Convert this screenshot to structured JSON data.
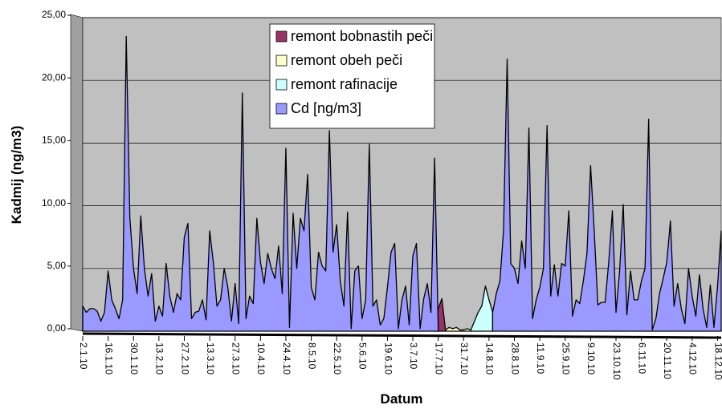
{
  "chart_data": {
    "type": "area",
    "y_label": "Kadmij (ng/m3)",
    "x_label": "Datum",
    "ylim": [
      0,
      25
    ],
    "yticks": [
      {
        "value": 0,
        "label": "0,00"
      },
      {
        "value": 5,
        "label": "5,00"
      },
      {
        "value": 10,
        "label": "10,00"
      },
      {
        "value": 15,
        "label": "15,00"
      },
      {
        "value": 20,
        "label": "20,00"
      },
      {
        "value": 25,
        "label": "25,00"
      }
    ],
    "grid": true,
    "legend": "top",
    "categories": [
      "2.1.10",
      null,
      null,
      null,
      null,
      null,
      null,
      "16.1.10",
      null,
      null,
      null,
      null,
      null,
      null,
      "30.1.10",
      null,
      null,
      null,
      null,
      null,
      null,
      "13.2.10",
      null,
      null,
      null,
      null,
      null,
      null,
      "27.2.10",
      null,
      null,
      null,
      null,
      null,
      null,
      "13.3.10",
      null,
      null,
      null,
      null,
      null,
      null,
      "27.3.10",
      null,
      null,
      null,
      null,
      null,
      null,
      "10.4.10",
      null,
      null,
      null,
      null,
      null,
      null,
      "24.4.10",
      null,
      null,
      null,
      null,
      null,
      null,
      "8.5.10",
      null,
      null,
      null,
      null,
      null,
      null,
      "22.5.10",
      null,
      null,
      null,
      null,
      null,
      null,
      "5.6.10",
      null,
      null,
      null,
      null,
      null,
      null,
      "19.6.10",
      null,
      null,
      null,
      null,
      null,
      null,
      "3.7.10",
      null,
      null,
      null,
      null,
      null,
      null,
      "17.7.10",
      null,
      null,
      null,
      null,
      null,
      null,
      "31.7.10",
      null,
      null,
      null,
      null,
      null,
      null,
      "14.8.10",
      null,
      null,
      null,
      null,
      null,
      null,
      "28.8.10",
      null,
      null,
      null,
      null,
      null,
      null,
      "11.9.10",
      null,
      null,
      null,
      null,
      null,
      null,
      "25.9.10",
      null,
      null,
      null,
      null,
      null,
      null,
      "9.10.10",
      null,
      null,
      null,
      null,
      null,
      null,
      "23.10.10",
      null,
      null,
      null,
      null,
      null,
      null,
      "6.11.10",
      null,
      null,
      null,
      null,
      null,
      null,
      "20.11.10",
      null,
      null,
      null,
      null,
      null,
      null,
      "4.12.10",
      null,
      null,
      null,
      null,
      null,
      null,
      "18.12.10",
      null
    ],
    "series": [
      {
        "name": "remont bobnastih peči",
        "color": "#993366",
        "values": [
          null,
          null,
          null,
          null,
          null,
          null,
          null,
          null,
          null,
          null,
          null,
          null,
          null,
          null,
          null,
          null,
          null,
          null,
          null,
          null,
          null,
          null,
          null,
          null,
          null,
          null,
          null,
          null,
          null,
          null,
          null,
          null,
          null,
          null,
          null,
          null,
          null,
          null,
          null,
          null,
          null,
          null,
          null,
          null,
          null,
          null,
          null,
          null,
          null,
          null,
          null,
          null,
          null,
          null,
          null,
          null,
          null,
          null,
          null,
          null,
          null,
          null,
          null,
          null,
          null,
          null,
          null,
          null,
          null,
          null,
          null,
          null,
          null,
          null,
          null,
          null,
          null,
          null,
          null,
          null,
          null,
          null,
          null,
          null,
          null,
          null,
          null,
          null,
          null,
          null,
          null,
          null,
          null,
          null,
          null,
          null,
          null,
          0,
          1.8,
          2.6,
          0.1,
          null,
          null,
          null,
          null,
          null,
          null,
          null,
          null,
          null,
          null,
          null,
          null,
          null,
          null,
          null,
          null,
          null,
          null,
          null,
          null,
          null,
          null,
          null,
          null,
          null,
          null,
          null,
          null,
          null,
          null,
          null,
          null,
          null,
          null,
          null,
          null,
          null,
          null,
          null,
          null,
          null,
          null,
          null,
          null,
          null,
          null,
          null,
          null,
          null,
          null,
          null,
          null,
          null,
          null,
          null,
          null,
          null,
          null,
          null,
          null,
          null,
          null,
          null,
          null,
          null,
          null,
          null,
          null,
          null,
          null,
          null,
          null,
          null,
          null,
          null,
          null
        ]
      },
      {
        "name": "remont obeh peči",
        "color": "#ffffcc",
        "values": [
          1.7,
          0,
          null,
          null,
          null,
          null,
          null,
          null,
          null,
          null,
          null,
          null,
          null,
          null,
          null,
          null,
          null,
          null,
          null,
          null,
          null,
          null,
          null,
          null,
          null,
          null,
          null,
          null,
          null,
          null,
          null,
          null,
          null,
          null,
          null,
          null,
          null,
          null,
          null,
          null,
          null,
          null,
          null,
          null,
          null,
          null,
          null,
          null,
          null,
          null,
          null,
          null,
          null,
          null,
          null,
          null,
          null,
          null,
          null,
          null,
          null,
          null,
          null,
          null,
          null,
          null,
          null,
          null,
          null,
          null,
          null,
          null,
          null,
          null,
          null,
          null,
          null,
          null,
          null,
          null,
          null,
          null,
          null,
          null,
          null,
          null,
          null,
          null,
          null,
          null,
          null,
          null,
          null,
          null,
          null,
          null,
          null,
          null,
          null,
          null,
          0.1,
          0.3,
          0.2,
          0.3,
          0.1,
          0.1,
          0.2,
          0.1,
          null,
          null,
          null,
          null,
          null,
          null,
          null,
          null,
          null,
          null,
          null,
          null,
          null,
          null,
          null,
          null,
          null,
          null,
          null,
          null,
          null,
          null,
          null,
          null,
          null,
          null,
          null,
          null,
          null,
          null,
          null,
          null,
          null,
          null,
          null,
          null,
          null,
          null,
          null,
          null,
          null,
          null,
          null,
          null,
          null,
          null,
          null,
          null,
          null,
          null,
          null,
          null,
          null,
          null,
          null,
          null,
          null,
          null,
          null,
          null,
          null,
          null,
          null,
          null,
          null,
          null,
          null,
          null,
          null
        ]
      },
      {
        "name": "remont rafinacije",
        "color": "#ccffff",
        "values": [
          null,
          null,
          null,
          null,
          null,
          null,
          null,
          null,
          null,
          null,
          null,
          null,
          null,
          null,
          null,
          null,
          null,
          null,
          null,
          null,
          null,
          null,
          null,
          null,
          null,
          null,
          null,
          null,
          null,
          null,
          null,
          null,
          null,
          null,
          null,
          null,
          null,
          null,
          null,
          null,
          null,
          null,
          null,
          null,
          null,
          null,
          null,
          null,
          null,
          null,
          null,
          null,
          null,
          null,
          null,
          null,
          null,
          null,
          null,
          null,
          null,
          null,
          null,
          null,
          null,
          null,
          null,
          null,
          null,
          null,
          null,
          null,
          null,
          null,
          null,
          null,
          null,
          null,
          null,
          null,
          null,
          null,
          null,
          null,
          null,
          null,
          null,
          null,
          null,
          null,
          null,
          null,
          null,
          null,
          null,
          null,
          null,
          null,
          null,
          null,
          null,
          null,
          null,
          null,
          null,
          null,
          null,
          0.1,
          0.8,
          1.5,
          2.0,
          3.6,
          2.5,
          1.5,
          null,
          null,
          null,
          null,
          null,
          null,
          null,
          null,
          null,
          null,
          null,
          null,
          null,
          null,
          null,
          null,
          null,
          null,
          null,
          null,
          null,
          null,
          null,
          null,
          null,
          null,
          null,
          null,
          null,
          null,
          null,
          null,
          null,
          null,
          null,
          null,
          null,
          null,
          null,
          null,
          null,
          null,
          null,
          null,
          null,
          null,
          null,
          null,
          null,
          null,
          null,
          null,
          null,
          null,
          null,
          null,
          null,
          null,
          null,
          null,
          null,
          null,
          null
        ]
      },
      {
        "name": "Cd [ng/m3]",
        "color": "#9999ff",
        "values": [
          2.0,
          1.5,
          1.8,
          1.8,
          1.6,
          0.8,
          1.5,
          4.8,
          2.5,
          1.8,
          1.0,
          2.5,
          23.5,
          9.0,
          5.0,
          3.0,
          9.2,
          5.0,
          2.8,
          4.6,
          0.8,
          2.0,
          1.2,
          5.4,
          2.8,
          1.5,
          3.0,
          2.5,
          7.5,
          8.6,
          1.0,
          1.5,
          1.6,
          2.5,
          0.9,
          8.0,
          5.5,
          2.0,
          2.5,
          5.0,
          3.5,
          0.8,
          3.8,
          0.6,
          19.0,
          1.0,
          2.8,
          2.2,
          9.0,
          5.5,
          3.8,
          6.2,
          5.0,
          4.2,
          6.8,
          3.0,
          14.6,
          0.3,
          9.4,
          5.0,
          9.0,
          8.0,
          12.5,
          3.5,
          2.5,
          6.3,
          5.2,
          4.8,
          16.0,
          6.3,
          8.5,
          4.0,
          2.0,
          9.5,
          0.2,
          4.8,
          5.2,
          1.0,
          2.5,
          14.9,
          2.0,
          2.5,
          0.5,
          1.0,
          3.5,
          6.3,
          7.0,
          0.2,
          2.5,
          3.6,
          0.5,
          6.0,
          7.0,
          0.2,
          2.6,
          3.8,
          1.5,
          13.8,
          0.2,
          null,
          null,
          null,
          null,
          null,
          null,
          null,
          null,
          null,
          null,
          null,
          null,
          null,
          null,
          1.5,
          3.0,
          4.0,
          8.0,
          21.7,
          5.4,
          5.0,
          3.8,
          7.2,
          5.0,
          16.2,
          1.0,
          2.5,
          3.5,
          5.0,
          16.4,
          2.8,
          5.3,
          2.8,
          5.4,
          5.2,
          9.6,
          1.2,
          2.5,
          2.2,
          4.0,
          6.2,
          13.2,
          8.0,
          2.1,
          2.3,
          2.3,
          5.5,
          9.6,
          1.5,
          4.8,
          10.1,
          1.3,
          4.8,
          2.5,
          2.5,
          4.0,
          5.0,
          16.9,
          0.1,
          1.0,
          3.0,
          4.2,
          5.5,
          8.8,
          2.0,
          3.8,
          1.8,
          0.6,
          5.0,
          2.8,
          1.2,
          4.5,
          1.8,
          0.3,
          3.7,
          0.3,
          3.6,
          8.0
        ]
      }
    ]
  }
}
